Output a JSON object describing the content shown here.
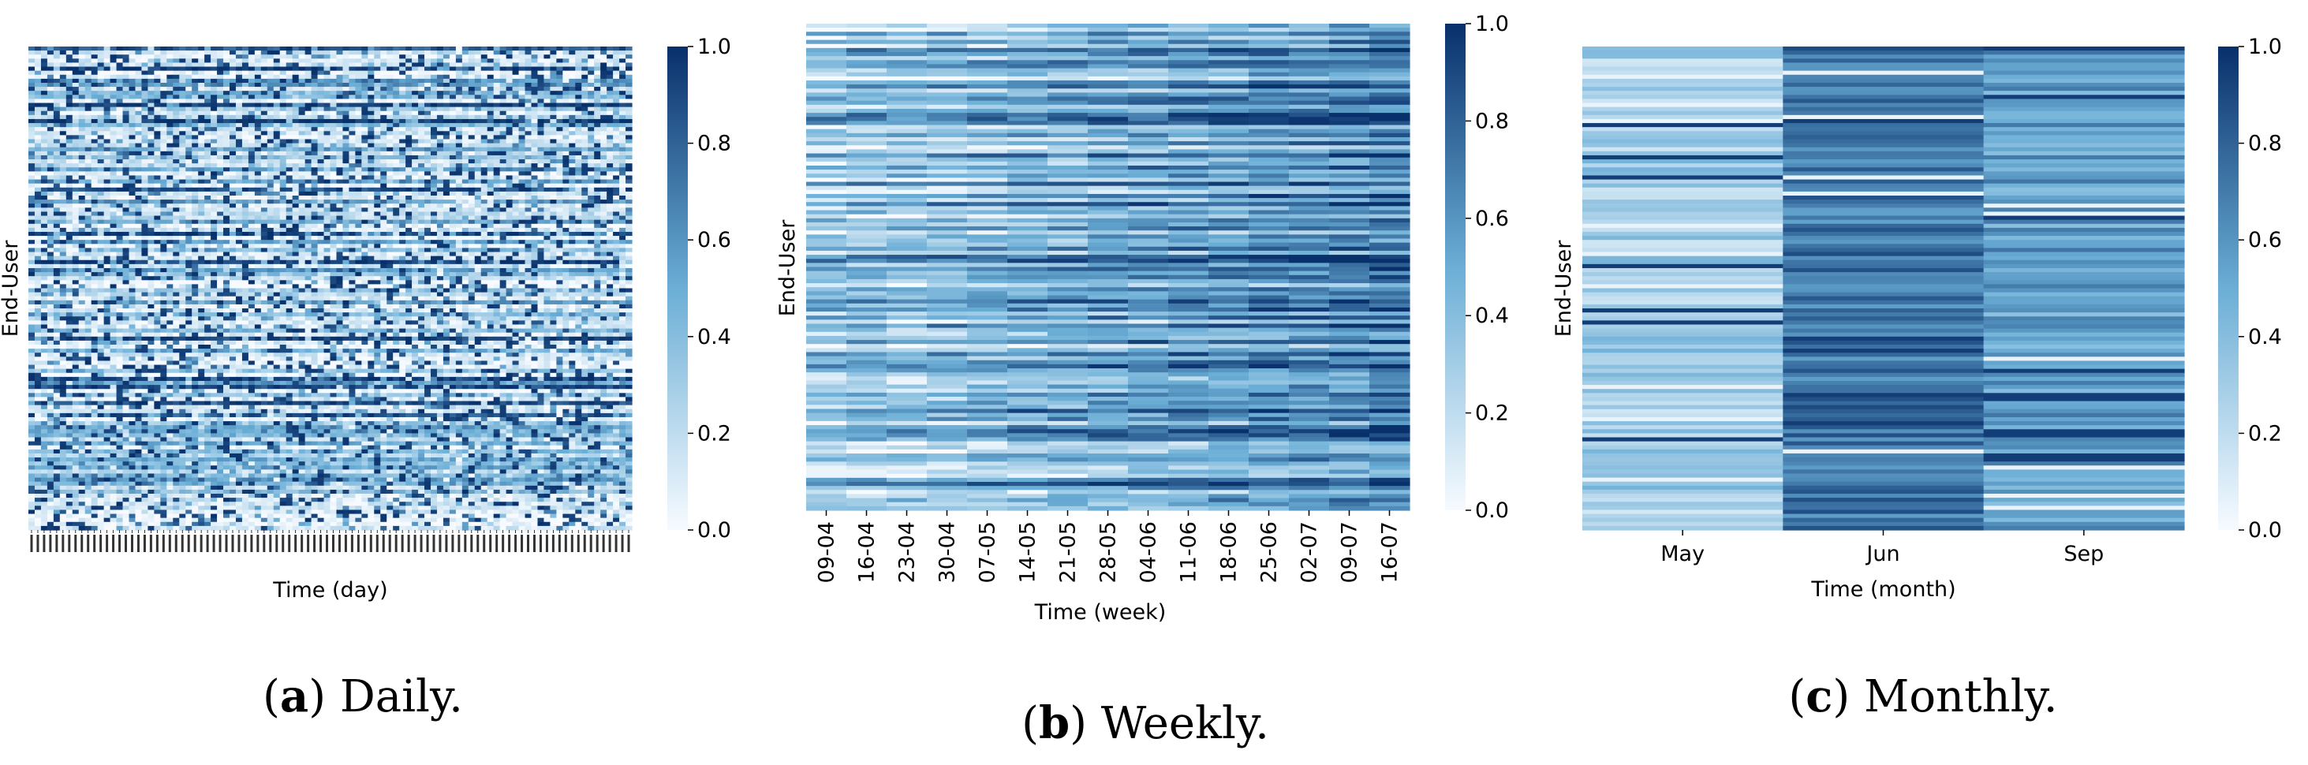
{
  "colors": {
    "cmap_low": "#f7fbff",
    "cmap_mid": "#6baed6",
    "cmap_high": "#08306b",
    "text": "#000000"
  },
  "chart_data": [
    {
      "type": "heatmap",
      "panel": "a",
      "caption_label": "a",
      "caption_text": " Daily.",
      "xlabel": "Time (day)",
      "ylabel": "End-User",
      "x_tick_count": 96,
      "x_tick_labels_legible": false,
      "y_tick_labels": [],
      "rows": 120,
      "columns": 96,
      "colorbar": {
        "vmin": 0.0,
        "vmax": 1.0,
        "ticks": [
          "0.0",
          "0.2",
          "0.4",
          "0.6",
          "0.8",
          "1.0"
        ]
      }
    },
    {
      "type": "heatmap",
      "panel": "b",
      "caption_label": "b",
      "caption_text": " Weekly.",
      "xlabel": "Time (week)",
      "ylabel": "End-User",
      "categories": [
        "09-04",
        "16-04",
        "23-04",
        "30-04",
        "07-05",
        "14-05",
        "21-05",
        "28-05",
        "04-06",
        "11-06",
        "18-06",
        "25-06",
        "02-07",
        "09-07",
        "16-07"
      ],
      "rows": 120,
      "colorbar": {
        "vmin": 0.0,
        "vmax": 1.0,
        "ticks": [
          "0.0",
          "0.2",
          "0.4",
          "0.6",
          "0.8",
          "1.0"
        ]
      }
    },
    {
      "type": "heatmap",
      "panel": "c",
      "caption_label": "c",
      "caption_text": " Monthly.",
      "xlabel": "Time (month)",
      "ylabel": "End-User",
      "categories": [
        "May",
        "Jun",
        "Sep"
      ],
      "rows": 120,
      "colorbar": {
        "vmin": 0.0,
        "vmax": 1.0,
        "ticks": [
          "0.0",
          "0.2",
          "0.4",
          "0.6",
          "0.8",
          "1.0"
        ]
      }
    }
  ]
}
